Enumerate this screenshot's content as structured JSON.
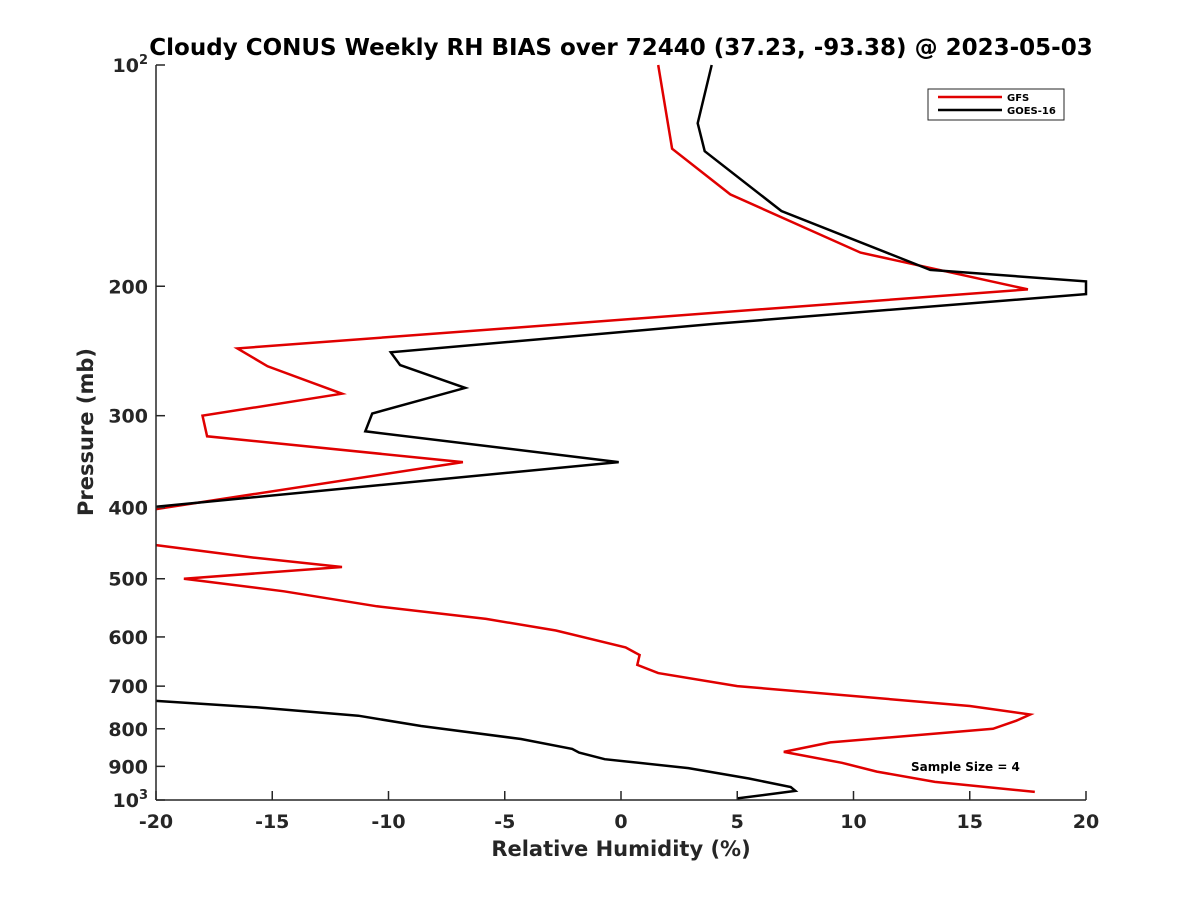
{
  "chart_data": {
    "type": "line",
    "title": "Cloudy CONUS Weekly RH BIAS over 72440 (37.23, -93.38) @ 2023-05-03",
    "xlabel": "Relative Humidity (%)",
    "ylabel": "Pressure (mb)",
    "xlim": [
      -20,
      20
    ],
    "ylim": [
      100,
      1000
    ],
    "y_scale": "log",
    "y_reversed": true,
    "x_ticks": [
      "-20",
      "-15",
      "-10",
      "-5",
      "0",
      "5",
      "10",
      "15",
      "20"
    ],
    "y_ticks": [
      {
        "value": 100,
        "base": "10",
        "exp": "2"
      },
      {
        "value": 200,
        "label": "200"
      },
      {
        "value": 300,
        "label": "300"
      },
      {
        "value": 400,
        "label": "400"
      },
      {
        "value": 500,
        "label": "500"
      },
      {
        "value": 600,
        "label": "600"
      },
      {
        "value": 700,
        "label": "700"
      },
      {
        "value": 800,
        "label": "800"
      },
      {
        "value": 900,
        "label": "900"
      },
      {
        "value": 1000,
        "base": "10",
        "exp": "3"
      }
    ],
    "grid": false,
    "legend_position": "top-right",
    "annotation": "Sample Size = 4",
    "series": [
      {
        "name": "GFS",
        "color": "#e00000",
        "segments": [
          [
            [
              1.6,
              100
            ],
            [
              2.2,
              130
            ],
            [
              4.7,
              150
            ],
            [
              10.3,
              180
            ],
            [
              17.5,
              202
            ],
            [
              -16.5,
              243
            ],
            [
              -15.2,
              257
            ],
            [
              -12.0,
              280
            ],
            [
              -18.0,
              300
            ],
            [
              -17.8,
              320
            ],
            [
              -6.8,
              347
            ],
            [
              -20.0,
              402
            ]
          ],
          [
            [
              -20.0,
              450
            ],
            [
              -15.8,
              468
            ],
            [
              -12.0,
              482
            ],
            [
              -18.8,
              500
            ],
            [
              -14.5,
              520
            ],
            [
              -10.5,
              545
            ],
            [
              -5.8,
              567
            ],
            [
              -2.8,
              588
            ],
            [
              0.2,
              620
            ],
            [
              0.8,
              635
            ],
            [
              0.7,
              655
            ],
            [
              1.6,
              672
            ],
            [
              5.0,
              700
            ],
            [
              15.0,
              745
            ],
            [
              17.6,
              765
            ],
            [
              17.0,
              780
            ],
            [
              16.0,
              800
            ],
            [
              9.0,
              835
            ],
            [
              7.0,
              860
            ],
            [
              9.5,
              890
            ],
            [
              11.0,
              915
            ],
            [
              13.5,
              945
            ],
            [
              17.8,
              975
            ]
          ]
        ]
      },
      {
        "name": "GOES-16",
        "color": "#000000",
        "segments": [
          [
            [
              3.9,
              100
            ],
            [
              3.3,
              120
            ],
            [
              3.6,
              131
            ],
            [
              6.9,
              158
            ],
            [
              13.3,
              190
            ],
            [
              20.0,
              197
            ],
            [
              20.0,
              205
            ],
            [
              4.0,
              225
            ],
            [
              -9.9,
              246
            ],
            [
              -9.5,
              256
            ],
            [
              -6.7,
              275
            ],
            [
              -10.7,
              298
            ],
            [
              -11.0,
              315
            ],
            [
              -0.1,
              347
            ],
            [
              -20.0,
              399
            ]
          ],
          [
            [
              -20.0,
              733
            ],
            [
              -15.7,
              748
            ],
            [
              -11.3,
              768
            ],
            [
              -8.6,
              793
            ],
            [
              -4.3,
              826
            ],
            [
              -2.1,
              852
            ],
            [
              -1.8,
              862
            ],
            [
              -0.7,
              880
            ],
            [
              2.9,
              905
            ],
            [
              5.5,
              935
            ],
            [
              7.3,
              960
            ],
            [
              7.5,
              972
            ],
            [
              5.0,
              995
            ]
          ]
        ]
      }
    ]
  }
}
